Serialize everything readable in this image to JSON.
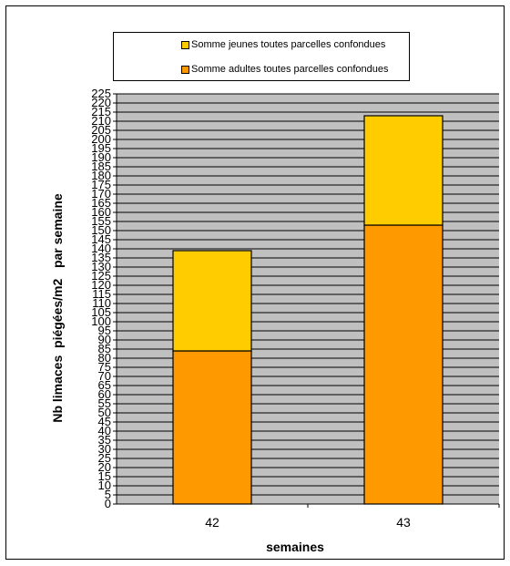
{
  "chart_data": {
    "type": "bar",
    "stacked": true,
    "categories": [
      "42",
      "43"
    ],
    "series": [
      {
        "name": "Somme adultes toutes parcelles confondues",
        "values": [
          84,
          153
        ],
        "color": "#FF9900"
      },
      {
        "name": "Somme jeunes toutes parcelles confondues",
        "values": [
          55,
          60
        ],
        "color": "#FFCC00"
      }
    ],
    "xlabel": "semaines",
    "ylabel": "Nb limaces  piégées/m2   par semaine",
    "ylim": [
      0,
      225
    ],
    "ytick_step": 5,
    "grid": true,
    "plot_background": "#C0C0C0",
    "legend_position": "top"
  }
}
